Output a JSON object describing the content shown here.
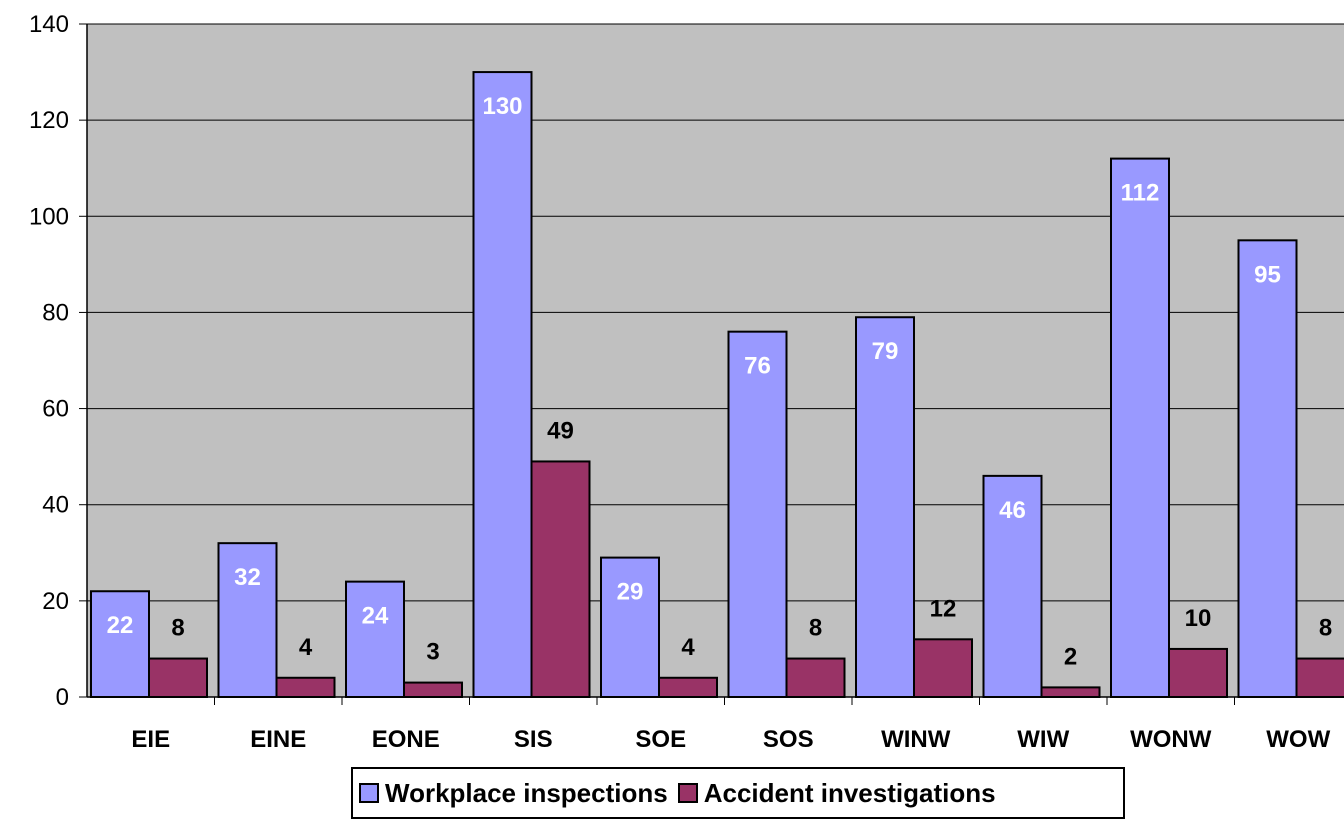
{
  "chart_data": {
    "type": "bar",
    "categories": [
      "EIE",
      "EINE",
      "EONE",
      "SIS",
      "SOE",
      "SOS",
      "WINW",
      "WIW",
      "WONW",
      "WOW"
    ],
    "series": [
      {
        "name": "Workplace inspections",
        "values": [
          22,
          32,
          24,
          130,
          29,
          76,
          79,
          46,
          112,
          95
        ],
        "color": "#9999FF",
        "label_color": "#FFFFFF"
      },
      {
        "name": "Accident investigations",
        "values": [
          8,
          4,
          3,
          49,
          4,
          8,
          12,
          2,
          10,
          8
        ],
        "color": "#993366",
        "label_color": "#000000"
      }
    ],
    "y_ticks": [
      "0",
      "20",
      "40",
      "60",
      "80",
      "100",
      "120",
      "140"
    ],
    "ylim": [
      0,
      140
    ],
    "plot_background": "#C0C0C0",
    "grid": true,
    "legend_position": "bottom"
  }
}
